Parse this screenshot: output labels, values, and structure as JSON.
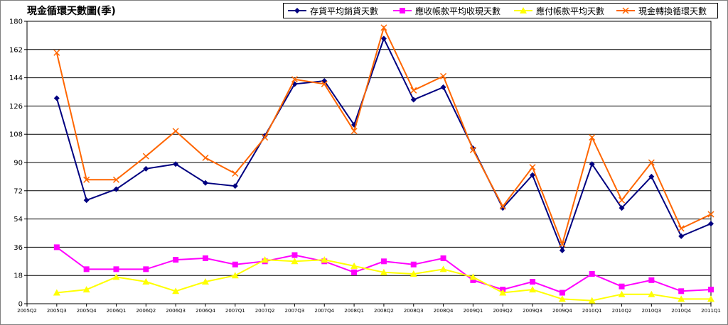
{
  "chart_data": {
    "type": "line",
    "title": "現金循環天數圖(季)",
    "xlabel": "",
    "ylabel": "",
    "ylim": [
      0,
      180
    ],
    "ytick_step": 18,
    "grid": true,
    "legend_position": "top-right",
    "categories": [
      "2005Q2",
      "2005Q3",
      "2005Q4",
      "2006Q1",
      "2006Q2",
      "2006Q3",
      "2006Q4",
      "2007Q1",
      "2007Q2",
      "2007Q3",
      "2007Q4",
      "2008Q1",
      "2008Q2",
      "2008Q3",
      "2008Q4",
      "2009Q1",
      "2009Q2",
      "2009Q3",
      "2009Q4",
      "2010Q1",
      "2010Q2",
      "2010Q3",
      "2010Q4",
      "2011Q1"
    ],
    "series": [
      {
        "name": "存貨平均銷貨天數",
        "color": "#000080",
        "marker": "diamond",
        "values": [
          null,
          131,
          66,
          73,
          86,
          89,
          77,
          75,
          107,
          140,
          142,
          114,
          169,
          130,
          138,
          99,
          61,
          82,
          34,
          89,
          61,
          81,
          43,
          51
        ]
      },
      {
        "name": "應收帳款平均收現天數",
        "color": "#ff00ff",
        "marker": "square",
        "values": [
          null,
          36,
          22,
          22,
          22,
          28,
          29,
          25,
          27,
          31,
          27,
          20,
          27,
          25,
          29,
          15,
          9,
          14,
          7,
          19,
          11,
          15,
          8,
          9
        ]
      },
      {
        "name": "應付帳款平均天數",
        "color": "#ffff00",
        "marker": "triangle",
        "values": [
          null,
          7,
          9,
          17,
          14,
          8,
          14,
          18,
          28,
          27,
          28,
          24,
          20,
          19,
          22,
          17,
          7,
          9,
          3,
          2,
          6,
          6,
          3,
          3
        ]
      },
      {
        "name": "現金轉換循環天數",
        "color": "#ff6600",
        "marker": "x",
        "values": [
          null,
          160,
          79,
          79,
          94,
          110,
          93,
          83,
          106,
          143,
          140,
          110,
          176,
          136,
          145,
          98,
          62,
          87,
          38,
          106,
          66,
          90,
          48,
          57
        ]
      }
    ]
  }
}
